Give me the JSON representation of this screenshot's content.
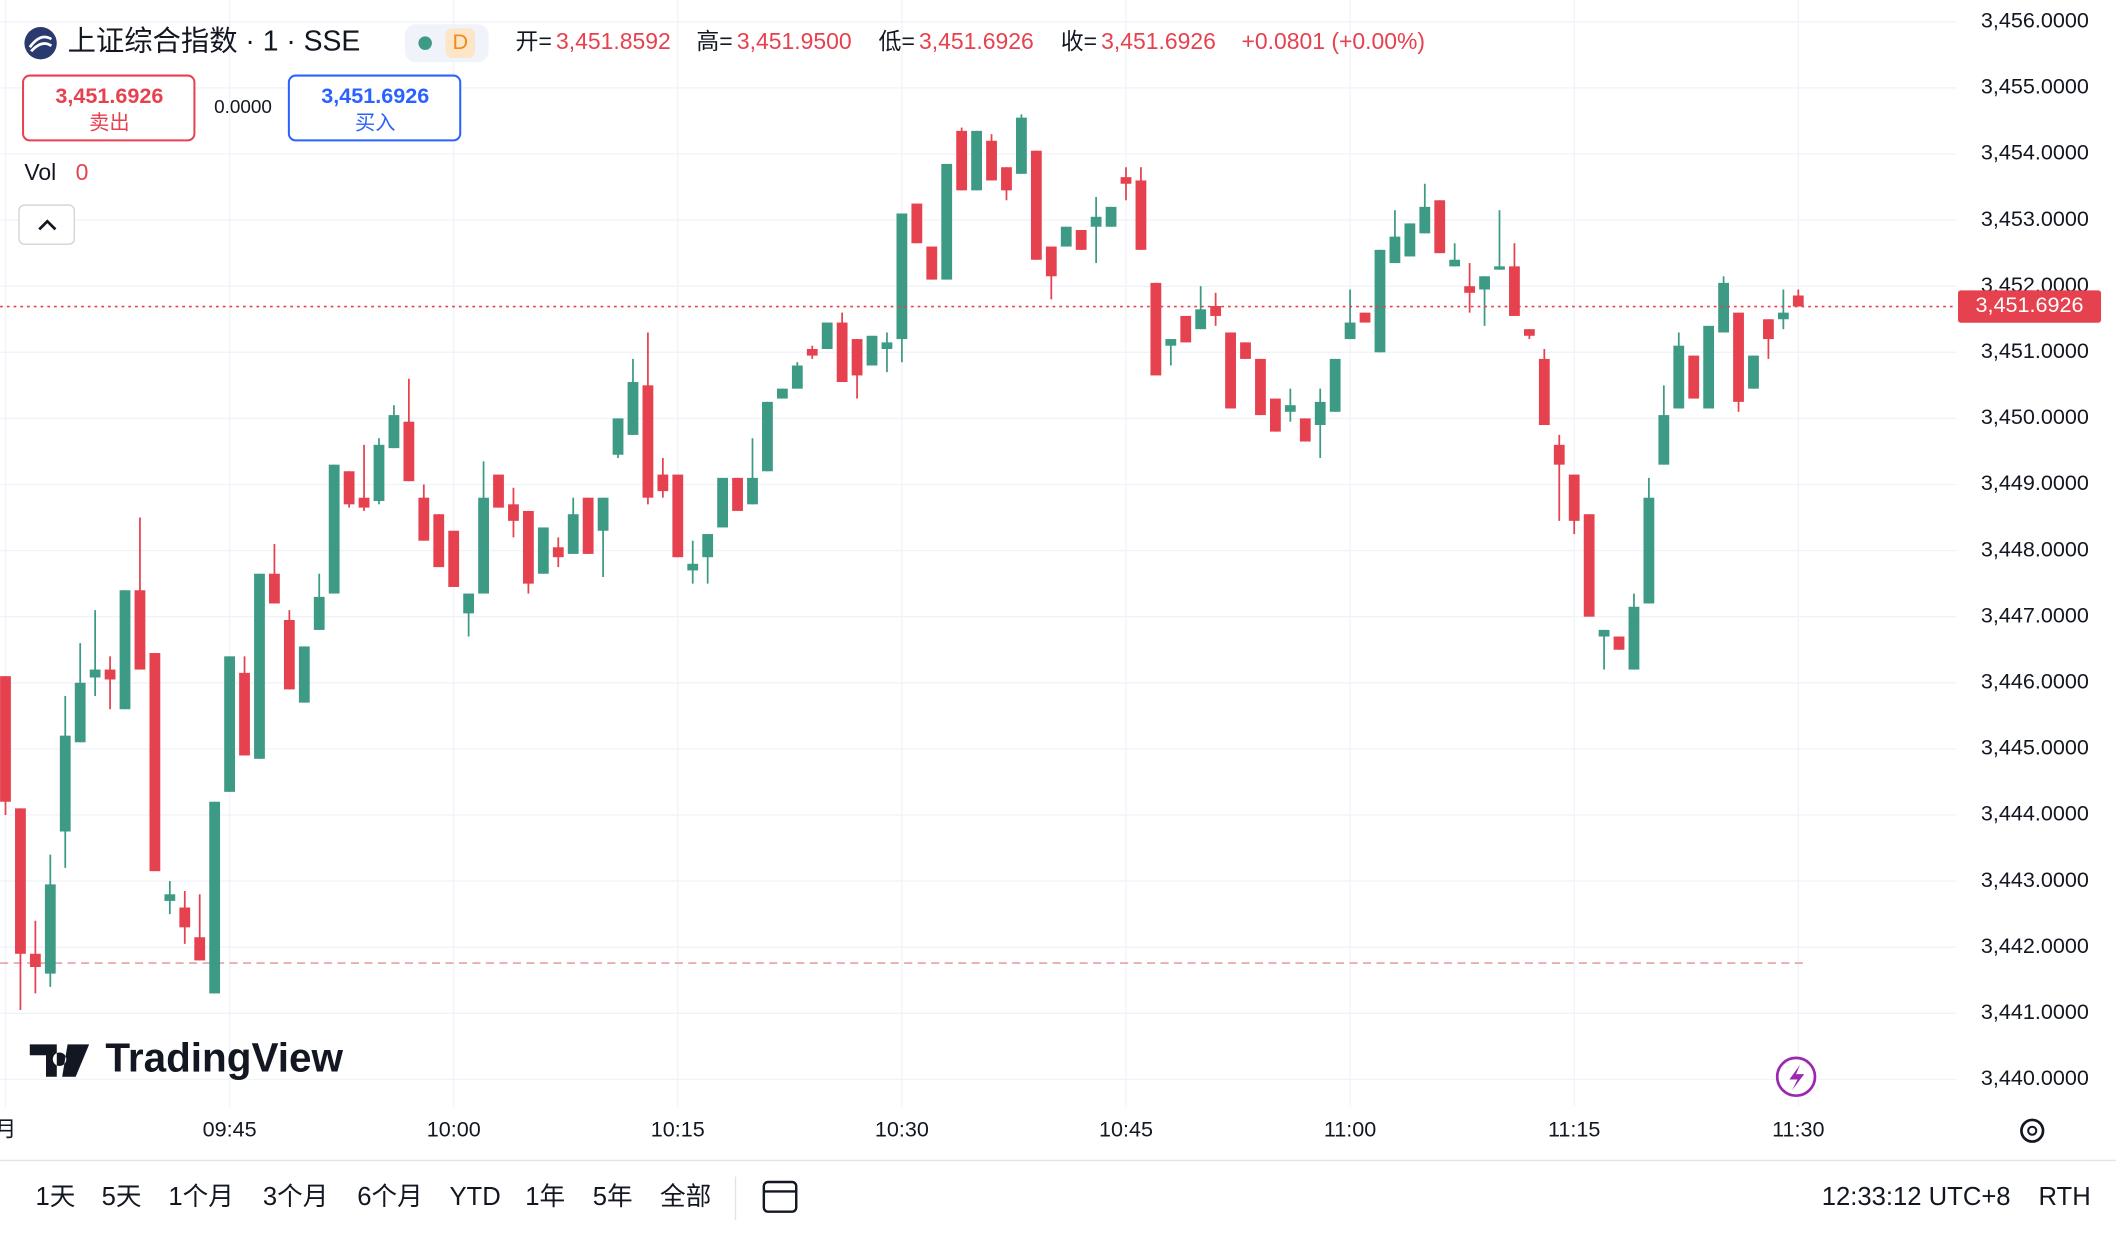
{
  "header": {
    "title": "上证综合指数 · 1 · SSE",
    "badge": "D",
    "ohlc": [
      {
        "label": "开=",
        "value": "3,451.8592"
      },
      {
        "label": "高=",
        "value": "3,451.9500"
      },
      {
        "label": "低=",
        "value": "3,451.6926"
      },
      {
        "label": "收=",
        "value": "3,451.6926"
      }
    ],
    "change": "+0.0801 (+0.00%)"
  },
  "trade": {
    "sell_price": "3,451.6926",
    "sell_label": "卖出",
    "spread": "0.0000",
    "buy_price": "3,451.6926",
    "buy_label": "买入"
  },
  "volume": {
    "label": "Vol",
    "value": "0"
  },
  "logo": "TradingView",
  "toolbar": {
    "ranges": [
      "1天",
      "5天",
      "1个月",
      "3个月",
      "6个月",
      "YTD",
      "1年",
      "5年",
      "全部"
    ],
    "time": "12:33:12 UTC+8",
    "session": "RTH"
  },
  "chart_data": {
    "type": "candlestick",
    "up_color": "#3d9a84",
    "down_color": "#e6414f",
    "grid": true,
    "xlim": [
      -0.36,
      130.6
    ],
    "xticks": [
      {
        "value": 0,
        "label": "月"
      },
      {
        "value": 15,
        "label": "09:45"
      },
      {
        "value": 30,
        "label": "10:00"
      },
      {
        "value": 45,
        "label": "10:15"
      },
      {
        "value": 60,
        "label": "10:30"
      },
      {
        "value": 75,
        "label": "10:45"
      },
      {
        "value": 90,
        "label": "11:00"
      },
      {
        "value": 105,
        "label": "11:15"
      },
      {
        "value": 120,
        "label": "11:30"
      }
    ],
    "ylim": [
      3439.59,
      3456.33
    ],
    "yticks": [
      {
        "value": 3440,
        "label": "3,440.0000"
      },
      {
        "value": 3441,
        "label": "3,441.0000"
      },
      {
        "value": 3442,
        "label": "3,442.0000"
      },
      {
        "value": 3443,
        "label": "3,443.0000"
      },
      {
        "value": 3444,
        "label": "3,444.0000"
      },
      {
        "value": 3445,
        "label": "3,445.0000"
      },
      {
        "value": 3446,
        "label": "3,446.0000"
      },
      {
        "value": 3447,
        "label": "3,447.0000"
      },
      {
        "value": 3448,
        "label": "3,448.0000"
      },
      {
        "value": 3449,
        "label": "3,449.0000"
      },
      {
        "value": 3450,
        "label": "3,450.0000"
      },
      {
        "value": 3451,
        "label": "3,451.0000"
      },
      {
        "value": 3452,
        "label": "3,452.0000"
      },
      {
        "value": 3453,
        "label": "3,453.0000"
      },
      {
        "value": 3454,
        "label": "3,454.0000"
      },
      {
        "value": 3455,
        "label": "3,455.0000"
      },
      {
        "value": 3456,
        "label": "3,456.0000"
      }
    ],
    "last_price": {
      "value": 3451.6926,
      "label": "3,451.6926"
    },
    "reference_line": 3441.76,
    "open": [
      3446.1,
      3444.1,
      3441.9,
      3441.6,
      3443.75,
      3445.1,
      3446.08,
      3446.2,
      3445.6,
      3447.4,
      3446.45,
      3442.7,
      3442.6,
      3442.15,
      3441.3,
      3444.35,
      3446.15,
      3444.85,
      3447.65,
      3446.95,
      3445.7,
      3446.8,
      3447.35,
      3449.2,
      3448.8,
      3448.75,
      3449.55,
      3449.95,
      3448.8,
      3448.55,
      3448.3,
      3447.05,
      3447.35,
      3449.15,
      3448.7,
      3448.6,
      3447.65,
      3448.05,
      3447.95,
      3448.8,
      3448.3,
      3449.45,
      3449.75,
      3450.5,
      3449.15,
      3449.15,
      3447.7,
      3447.9,
      3448.35,
      3449.1,
      3448.7,
      3449.2,
      3450.3,
      3450.45,
      3451.05,
      3451.05,
      3451.45,
      3451.2,
      3450.8,
      3451.05,
      3451.2,
      3453.25,
      3452.6,
      3452.1,
      3454.35,
      3453.45,
      3454.2,
      3453.8,
      3453.7,
      3454.05,
      3452.6,
      3452.6,
      3452.85,
      3452.9,
      3452.9,
      3453.65,
      3453.6,
      3452.05,
      3451.1,
      3451.55,
      3451.35,
      3451.7,
      3451.3,
      3451.15,
      3450.9,
      3450.3,
      3450.1,
      3450.0,
      3449.9,
      3450.1,
      3451.2,
      3451.6,
      3451.0,
      3452.35,
      3452.45,
      3452.8,
      3453.3,
      3452.3,
      3452.0,
      3451.95,
      3452.25,
      3452.3,
      3451.35,
      3450.9,
      3449.6,
      3449.15,
      3448.55,
      3446.7,
      3446.7,
      3446.2,
      3447.2,
      3449.3,
      3450.15,
      3450.95,
      3450.15,
      3451.3,
      3451.6,
      3450.45,
      3451.5,
      3451.5,
      3451.8592
    ],
    "high": [
      3446.1,
      3444.1,
      3442.4,
      3443.4,
      3445.8,
      3446.6,
      3447.1,
      3446.4,
      3447.4,
      3448.5,
      3446.45,
      3443.0,
      3442.85,
      3442.8,
      3444.2,
      3446.4,
      3446.4,
      3447.65,
      3448.1,
      3447.1,
      3446.55,
      3447.65,
      3449.3,
      3449.2,
      3449.6,
      3449.7,
      3450.2,
      3450.6,
      3449.0,
      3448.55,
      3448.3,
      3447.35,
      3449.35,
      3449.15,
      3448.95,
      3448.6,
      3448.35,
      3448.2,
      3448.8,
      3448.8,
      3448.8,
      3450.0,
      3450.9,
      3451.3,
      3449.4,
      3449.15,
      3448.15,
      3448.25,
      3449.1,
      3449.1,
      3449.7,
      3450.25,
      3450.45,
      3450.85,
      3451.1,
      3451.45,
      3451.6,
      3451.2,
      3451.25,
      3451.3,
      3453.1,
      3453.25,
      3452.6,
      3453.85,
      3454.4,
      3454.35,
      3454.3,
      3453.8,
      3454.6,
      3454.05,
      3452.6,
      3452.9,
      3452.85,
      3453.35,
      3453.2,
      3453.8,
      3453.8,
      3452.05,
      3451.2,
      3451.55,
      3452.0,
      3451.9,
      3451.3,
      3451.15,
      3450.9,
      3450.3,
      3450.45,
      3450.0,
      3450.45,
      3450.9,
      3451.95,
      3451.6,
      3452.55,
      3453.15,
      3452.95,
      3453.55,
      3453.3,
      3452.65,
      3452.35,
      3452.15,
      3453.15,
      3452.65,
      3451.35,
      3451.05,
      3449.75,
      3449.15,
      3448.55,
      3446.8,
      3446.7,
      3447.35,
      3449.1,
      3450.5,
      3451.3,
      3450.95,
      3451.4,
      3452.15,
      3451.6,
      3450.95,
      3451.5,
      3451.95,
      3451.95
    ],
    "low": [
      3444.0,
      3441.05,
      3441.3,
      3441.4,
      3443.2,
      3445.1,
      3445.8,
      3445.6,
      3445.6,
      3446.2,
      3443.15,
      3442.5,
      3442.05,
      3441.8,
      3441.3,
      3444.35,
      3444.9,
      3444.85,
      3447.2,
      3445.9,
      3445.7,
      3446.8,
      3447.35,
      3448.65,
      3448.6,
      3448.7,
      3449.55,
      3449.05,
      3448.15,
      3447.75,
      3447.45,
      3446.7,
      3447.35,
      3448.65,
      3448.2,
      3447.35,
      3447.65,
      3447.75,
      3447.95,
      3447.95,
      3447.6,
      3449.4,
      3449.75,
      3448.7,
      3448.8,
      3447.9,
      3447.5,
      3447.5,
      3448.35,
      3448.6,
      3448.7,
      3449.2,
      3450.3,
      3450.45,
      3450.9,
      3451.05,
      3450.55,
      3450.3,
      3450.8,
      3450.7,
      3450.85,
      3452.65,
      3452.1,
      3452.1,
      3453.45,
      3453.45,
      3453.6,
      3453.3,
      3453.7,
      3452.4,
      3451.8,
      3452.6,
      3452.55,
      3452.35,
      3452.9,
      3453.3,
      3452.55,
      3450.65,
      3450.8,
      3451.15,
      3451.35,
      3451.4,
      3450.15,
      3450.9,
      3450.05,
      3449.8,
      3449.95,
      3449.65,
      3449.4,
      3450.1,
      3451.2,
      3451.45,
      3451.0,
      3452.35,
      3452.45,
      3452.8,
      3452.5,
      3452.3,
      3451.6,
      3451.4,
      3452.25,
      3451.55,
      3451.2,
      3449.9,
      3448.45,
      3448.25,
      3447.0,
      3446.2,
      3446.5,
      3446.2,
      3447.2,
      3449.3,
      3450.15,
      3450.3,
      3450.15,
      3451.3,
      3450.1,
      3450.45,
      3450.9,
      3451.35,
      3451.6926
    ],
    "close": [
      3444.2,
      3441.9,
      3441.7,
      3442.95,
      3445.2,
      3446.0,
      3446.2,
      3446.05,
      3447.4,
      3446.2,
      3443.15,
      3442.8,
      3442.3,
      3441.8,
      3444.2,
      3446.4,
      3444.9,
      3447.65,
      3447.2,
      3445.9,
      3446.55,
      3447.3,
      3449.3,
      3448.7,
      3448.65,
      3449.6,
      3450.05,
      3449.05,
      3448.15,
      3447.75,
      3447.45,
      3447.35,
      3448.8,
      3448.65,
      3448.45,
      3447.5,
      3448.35,
      3447.9,
      3448.55,
      3447.95,
      3448.8,
      3450.0,
      3450.55,
      3448.8,
      3448.9,
      3447.9,
      3447.8,
      3448.25,
      3449.1,
      3448.6,
      3449.1,
      3450.25,
      3450.45,
      3450.8,
      3450.95,
      3451.45,
      3450.55,
      3450.65,
      3451.25,
      3451.15,
      3453.1,
      3452.65,
      3452.1,
      3453.85,
      3453.45,
      3454.35,
      3453.6,
      3453.45,
      3454.55,
      3452.4,
      3452.15,
      3452.9,
      3452.55,
      3453.05,
      3453.2,
      3453.55,
      3452.55,
      3450.65,
      3451.2,
      3451.15,
      3451.65,
      3451.55,
      3450.15,
      3450.9,
      3450.05,
      3449.8,
      3450.2,
      3449.65,
      3450.25,
      3450.9,
      3451.45,
      3451.45,
      3452.55,
      3452.75,
      3452.95,
      3453.2,
      3452.5,
      3452.4,
      3451.9,
      3452.15,
      3452.3,
      3451.55,
      3451.25,
      3449.9,
      3449.3,
      3448.45,
      3447.0,
      3446.8,
      3446.5,
      3447.15,
      3448.8,
      3450.05,
      3451.1,
      3450.3,
      3451.4,
      3452.05,
      3450.25,
      3450.95,
      3451.2,
      3451.6,
      3451.6926
    ]
  }
}
